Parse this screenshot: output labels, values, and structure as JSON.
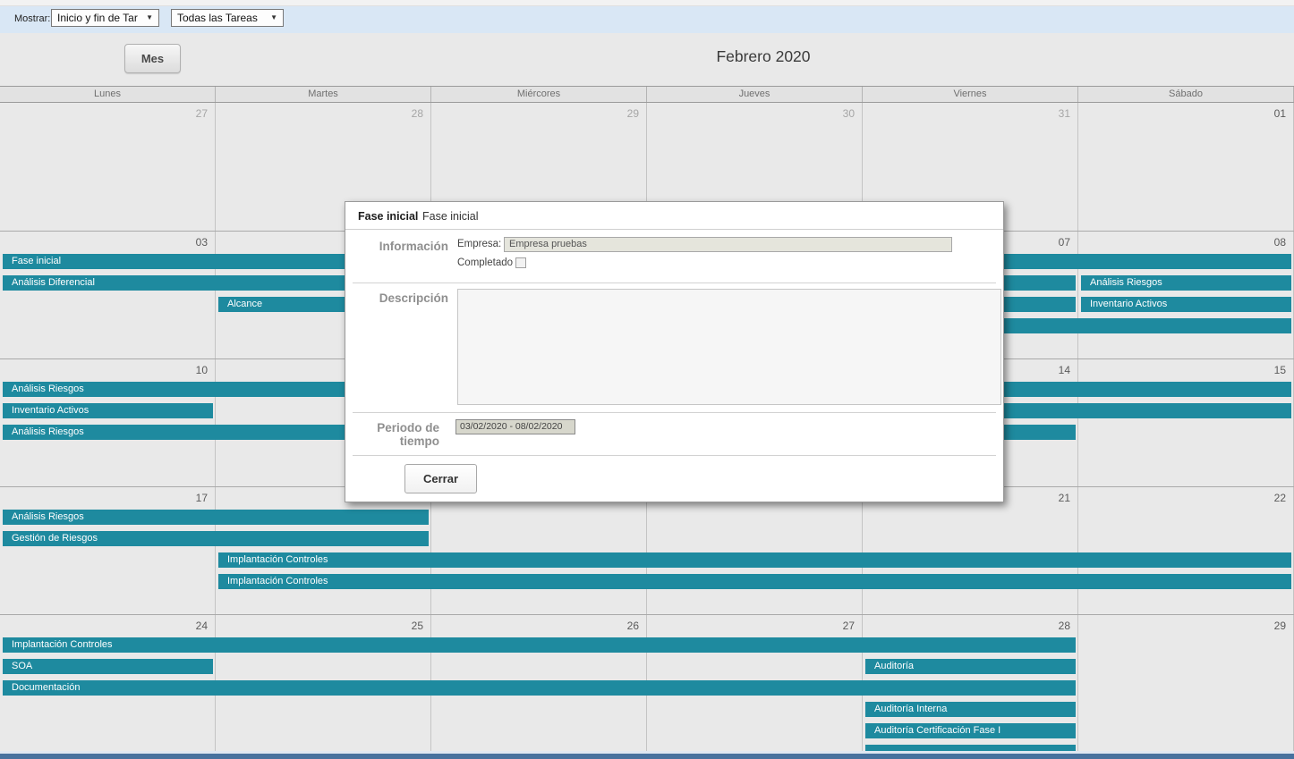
{
  "toolbar": {
    "mostrar_label": "Mostrar:",
    "view_select_value": "Inicio y fin de Tar",
    "filter_select_value": "Todas las Tareas",
    "dropdown_arrow_icon": "▼"
  },
  "header": {
    "mes_button_label": "Mes",
    "month_title": "Febrero 2020"
  },
  "calendar": {
    "day_headers": [
      "Lunes",
      "Martes",
      "Miércores",
      "Jueves",
      "Viernes",
      "Sábado"
    ],
    "weeks": [
      {
        "days": [
          "27",
          "28",
          "29",
          "30",
          "31",
          "01"
        ],
        "out_of_month": [
          true,
          true,
          true,
          true,
          true,
          false
        ],
        "bars": []
      },
      {
        "days": [
          "03",
          null,
          null,
          null,
          "07",
          "08"
        ],
        "out_of_month": [
          false,
          false,
          false,
          false,
          false,
          false
        ],
        "bars": [
          {
            "label": "Fase inicial",
            "row": 0,
            "start": 0,
            "end": 5
          },
          {
            "label": "Análisis Diferencial",
            "row": 1,
            "start": 0,
            "end": 4
          },
          {
            "label": "Análisis Riesgos",
            "row": 1,
            "start": 5,
            "end": 5
          },
          {
            "label": "Alcance",
            "row": 2,
            "start": 1,
            "end": 4
          },
          {
            "label": "Inventario Activos",
            "row": 2,
            "start": 5,
            "end": 5
          },
          {
            "label": "",
            "row": 3,
            "start": 4,
            "end": 5
          }
        ]
      },
      {
        "days": [
          "10",
          null,
          null,
          null,
          "14",
          "15"
        ],
        "out_of_month": [
          false,
          false,
          false,
          false,
          false,
          false
        ],
        "bars": [
          {
            "label": "Análisis Riesgos",
            "row": 0,
            "start": 0,
            "end": 5
          },
          {
            "label": "Inventario Activos",
            "row": 1,
            "start": 0,
            "end": 0
          },
          {
            "label": "",
            "row": 1,
            "start": 4,
            "end": 5
          },
          {
            "label": "Análisis Riesgos",
            "row": 2,
            "start": 0,
            "end": 4
          }
        ]
      },
      {
        "days": [
          "17",
          null,
          null,
          null,
          "21",
          "22"
        ],
        "out_of_month": [
          false,
          false,
          false,
          false,
          false,
          false
        ],
        "bars": [
          {
            "label": "Análisis Riesgos",
            "row": 0,
            "start": 0,
            "end": 1
          },
          {
            "label": "Gestión de Riesgos",
            "row": 1,
            "start": 0,
            "end": 1
          },
          {
            "label": "Implantación Controles",
            "row": 2,
            "start": 1,
            "end": 5
          },
          {
            "label": "Implantación Controles",
            "row": 3,
            "start": 1,
            "end": 5
          }
        ]
      },
      {
        "days": [
          "24",
          "25",
          "26",
          "27",
          "28",
          "29"
        ],
        "out_of_month": [
          false,
          false,
          false,
          false,
          false,
          false
        ],
        "bars": [
          {
            "label": "Implantación Controles",
            "row": 0,
            "start": 0,
            "end": 4
          },
          {
            "label": "SOA",
            "row": 1,
            "start": 0,
            "end": 0
          },
          {
            "label": "Auditoría",
            "row": 1,
            "start": 4,
            "end": 4
          },
          {
            "label": "Documentación",
            "row": 2,
            "start": 0,
            "end": 4
          },
          {
            "label": "Auditoría Interna",
            "row": 3,
            "start": 4,
            "end": 4
          },
          {
            "label": "Auditoría Certificación Fase I",
            "row": 4,
            "start": 4,
            "end": 4
          },
          {
            "label": "",
            "row": 5,
            "start": 4,
            "end": 4
          }
        ]
      }
    ]
  },
  "modal": {
    "tabs": [
      {
        "label": "Fase inicial",
        "active": true
      },
      {
        "label": "Fase inicial",
        "active": false
      }
    ],
    "info_section_label": "Información",
    "empresa_label": "Empresa:",
    "empresa_value": "Empresa pruebas",
    "completado_label": "Completado",
    "completado_checked": false,
    "descripcion_label": "Descripción",
    "descripcion_value": "",
    "periodo_label_line1": "Periodo de",
    "periodo_label_line2": "tiempo",
    "periodo_value": "03/02/2020 - 08/02/2020",
    "cerrar_button_label": "Cerrar"
  },
  "colors": {
    "task_bar": "#1e8a9f",
    "bottom_accent_strip": "#47719e",
    "toolbar_bg": "#d9e7f5"
  }
}
